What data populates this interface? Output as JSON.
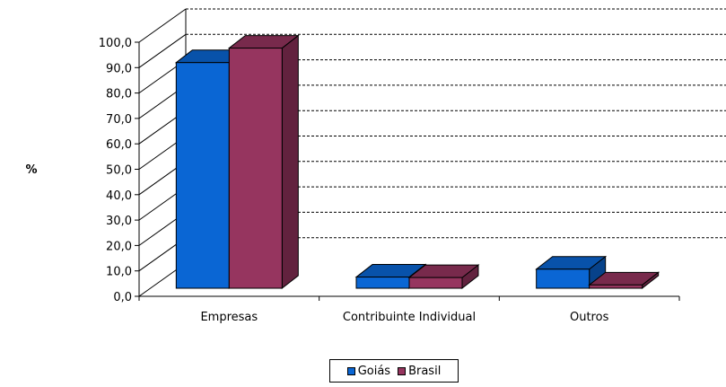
{
  "chart_data": {
    "type": "bar",
    "ylabel": "%",
    "categories": [
      "Empresas",
      "Contribuinte Individual",
      "Outros"
    ],
    "series": [
      {
        "name": "Goiás",
        "values": [
          88.8,
          4.4,
          7.5
        ],
        "color": "#0A66D4"
      },
      {
        "name": "Brasil",
        "values": [
          94.5,
          4.2,
          1.3
        ],
        "color": "#96355F"
      }
    ],
    "ylim": [
      0,
      100
    ],
    "yticks": [
      "0,0",
      "10,0",
      "20,0",
      "30,0",
      "40,0",
      "50,0",
      "60,0",
      "70,0",
      "80,0",
      "90,0",
      "100,0"
    ],
    "grid": true,
    "three_d": true,
    "legend_position": "bottom"
  }
}
